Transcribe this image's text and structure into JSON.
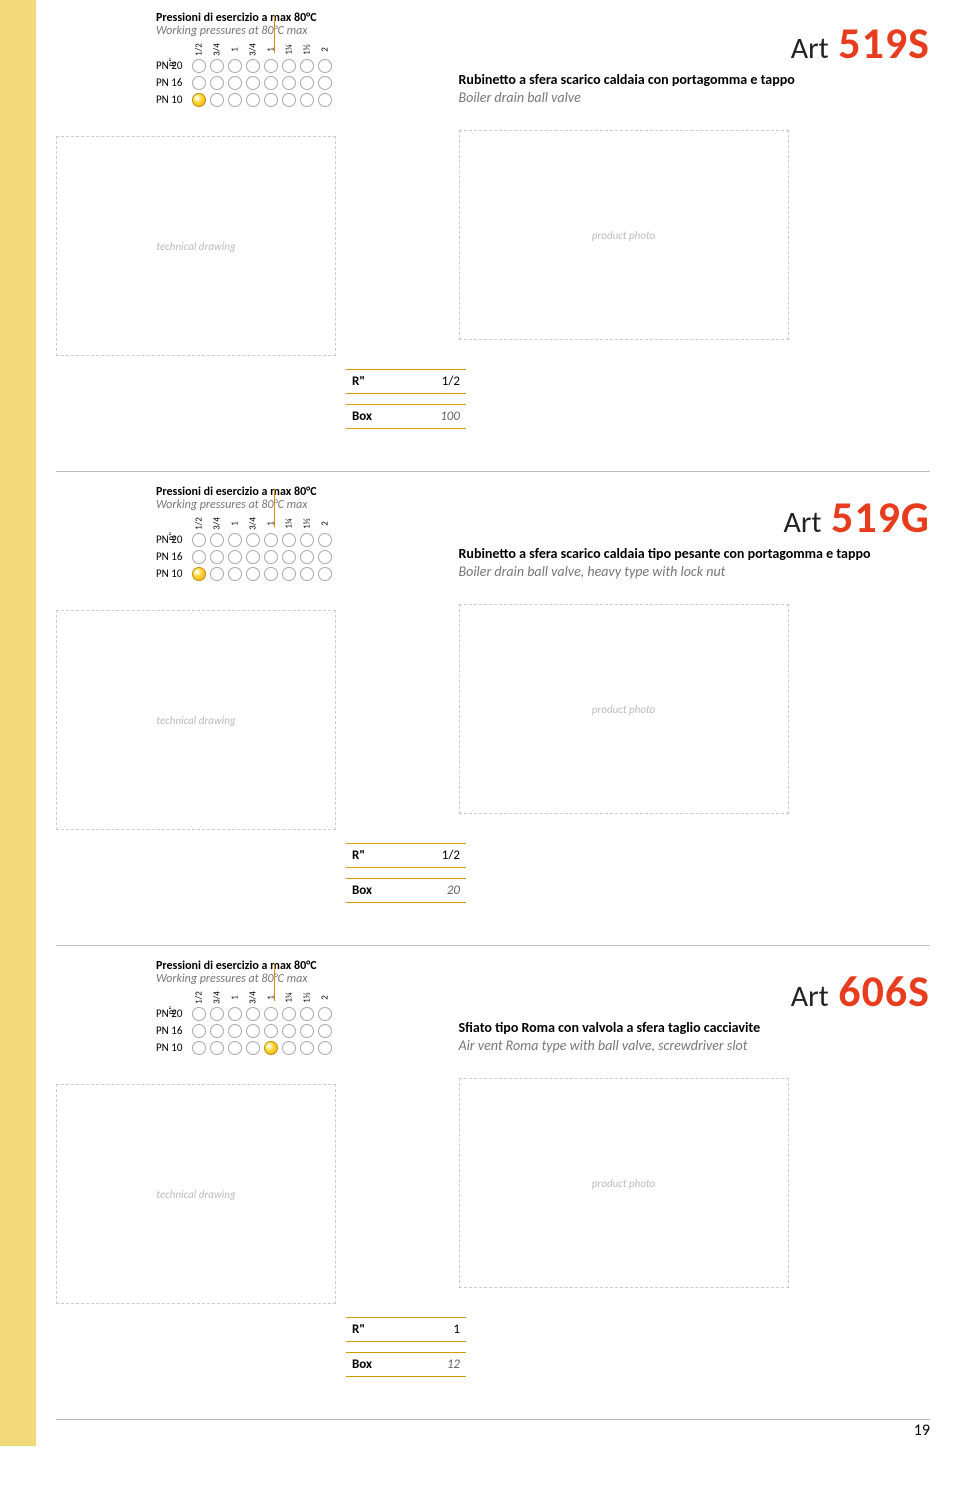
{
  "page_number": "19",
  "leftbar_color": "#f2d97a",
  "sections": [
    {
      "pressure": {
        "title_it": "Pressioni di esercizio a max 80°C",
        "title_en": "Working pressures at 80°C max",
        "corner": "R\"",
        "cols": [
          "1/2",
          "3/4",
          "1",
          "3/4",
          "1",
          "1¼",
          "1½",
          "2"
        ],
        "rows": [
          "PN 20",
          "PN 16",
          "PN 10"
        ],
        "on": [
          [
            2,
            0
          ]
        ]
      },
      "art_prefix": "Art",
      "art_code": "519S",
      "desc_it": "Rubinetto a sfera scarico caldaia con portagomma e tappo",
      "desc_en": "Boiler drain ball valve",
      "r_label": "R\"",
      "r_value": "1/2",
      "box_label": "Box",
      "box_value": "100",
      "diagram_placeholder": "technical drawing",
      "photo_placeholder": "product photo"
    },
    {
      "pressure": {
        "title_it": "Pressioni di esercizio a max 80°C",
        "title_en": "Working pressures at 80°C max",
        "corner": "R\"",
        "cols": [
          "1/2",
          "3/4",
          "1",
          "3/4",
          "1",
          "1¼",
          "1½",
          "2"
        ],
        "rows": [
          "PN 20",
          "PN 16",
          "PN 10"
        ],
        "on": [
          [
            2,
            0
          ]
        ]
      },
      "art_prefix": "Art",
      "art_code": "519G",
      "desc_it": "Rubinetto a sfera scarico caldaia tipo pesante con portagomma e tappo",
      "desc_en": "Boiler drain ball valve, heavy type with lock nut",
      "r_label": "R\"",
      "r_value": "1/2",
      "box_label": "Box",
      "box_value": "20",
      "diagram_placeholder": "technical drawing",
      "photo_placeholder": "product photo"
    },
    {
      "pressure": {
        "title_it": "Pressioni di esercizio a max 80°C",
        "title_en": "Working pressures at 80°C max",
        "corner": "R\"",
        "cols": [
          "1/2",
          "3/4",
          "1",
          "3/4",
          "1",
          "1¼",
          "1½",
          "2"
        ],
        "rows": [
          "PN 20",
          "PN 16",
          "PN 10"
        ],
        "on": [
          [
            2,
            4
          ]
        ]
      },
      "art_prefix": "Art",
      "art_code": "606S",
      "desc_it": "Sfiato tipo Roma con valvola a sfera taglio cacciavite",
      "desc_en": "Air vent Roma type with ball valve, screwdriver slot",
      "r_label": "R\"",
      "r_value": "1",
      "box_label": "Box",
      "box_value": "12",
      "diagram_placeholder": "technical drawing",
      "photo_placeholder": "product photo"
    }
  ]
}
